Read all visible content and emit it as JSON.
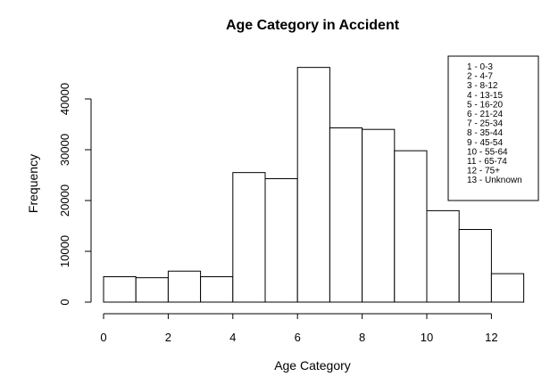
{
  "chart_data": {
    "type": "bar",
    "title": "Age Category in Accident",
    "xlabel": "Age Category",
    "ylabel": "Frequency",
    "bins": [
      {
        "x0": 0,
        "x1": 1,
        "value": 5000
      },
      {
        "x0": 1,
        "x1": 2,
        "value": 4800
      },
      {
        "x0": 2,
        "x1": 3,
        "value": 6100
      },
      {
        "x0": 3,
        "x1": 4,
        "value": 5000
      },
      {
        "x0": 4,
        "x1": 5,
        "value": 25500
      },
      {
        "x0": 5,
        "x1": 6,
        "value": 24300
      },
      {
        "x0": 6,
        "x1": 7,
        "value": 46200
      },
      {
        "x0": 7,
        "x1": 8,
        "value": 34300
      },
      {
        "x0": 8,
        "x1": 9,
        "value": 34000
      },
      {
        "x0": 9,
        "x1": 10,
        "value": 29800
      },
      {
        "x0": 10,
        "x1": 11,
        "value": 18000
      },
      {
        "x0": 11,
        "x1": 12,
        "value": 14300
      },
      {
        "x0": 12,
        "x1": 13,
        "value": 5600
      }
    ],
    "xlim": [
      0,
      13
    ],
    "ylim": [
      0,
      48000
    ],
    "x_ticks": [
      0,
      2,
      4,
      6,
      8,
      10,
      12
    ],
    "y_ticks": [
      0,
      10000,
      20000,
      30000,
      40000
    ],
    "grid": false,
    "legend_position": "top-right",
    "legend": [
      "1 - 0-3",
      "2 - 4-7",
      "3 - 8-12",
      "4 - 13-15",
      "5 - 16-20",
      "6 - 21-24",
      "7 - 25-34",
      "8 - 35-44",
      "9 - 45-54",
      "10 - 55-64",
      "11 - 65-74",
      "12 - 75+",
      "13 - Unknown"
    ]
  }
}
